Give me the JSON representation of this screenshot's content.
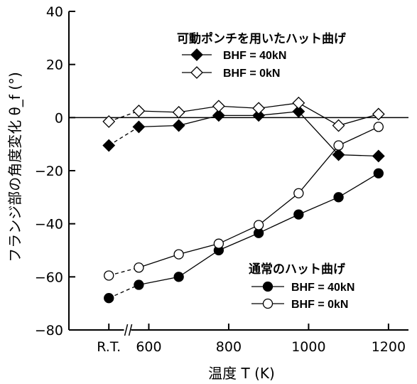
{
  "chart_data": {
    "type": "line",
    "xlabel": "温度 T (K)",
    "ylabel": "フランジ部の角度変化 θ_f (°)",
    "xlim": [
      400,
      1250
    ],
    "ylim": [
      -80,
      40
    ],
    "x_ticks": [
      {
        "value": 500,
        "label": "R.T."
      },
      {
        "value": 600,
        "label": "600"
      },
      {
        "value": 800,
        "label": "800"
      },
      {
        "value": 1000,
        "label": "1000"
      },
      {
        "value": 1200,
        "label": "1200"
      }
    ],
    "y_ticks": [
      -80,
      -60,
      -40,
      -20,
      0,
      20,
      40
    ],
    "axis_break_at": 545,
    "zero_line": true,
    "groups": [
      {
        "title": "可動ポンチを用いたハット曲げ",
        "series": [
          {
            "name": "BHF = 40kN",
            "marker": "diamond-filled",
            "x": [
              500,
              575,
              675,
              775,
              875,
              975,
              1075,
              1175
            ],
            "y": [
              -10.5,
              -3.5,
              -3,
              0.8,
              0.8,
              2.3,
              -14,
              -14.5
            ]
          },
          {
            "name": "BHF = 0kN",
            "marker": "diamond-open",
            "x": [
              500,
              575,
              675,
              775,
              875,
              975,
              1075,
              1175
            ],
            "y": [
              -1.5,
              2.5,
              2,
              4.3,
              3.5,
              5.5,
              -3,
              1.3
            ]
          }
        ]
      },
      {
        "title": "通常のハット曲げ",
        "series": [
          {
            "name": "BHF = 40kN",
            "marker": "circle-filled",
            "x": [
              500,
              575,
              675,
              775,
              875,
              975,
              1075,
              1175
            ],
            "y": [
              -68,
              -63,
              -60,
              -50,
              -43.5,
              -36.5,
              -30,
              -21
            ]
          },
          {
            "name": "BHF = 0kN",
            "marker": "circle-open",
            "x": [
              500,
              575,
              675,
              775,
              875,
              975,
              1075,
              1175
            ],
            "y": [
              -59.5,
              -56.5,
              -51.5,
              -47.5,
              -40.5,
              -28.5,
              -10.5,
              -3.5
            ]
          }
        ]
      }
    ]
  }
}
